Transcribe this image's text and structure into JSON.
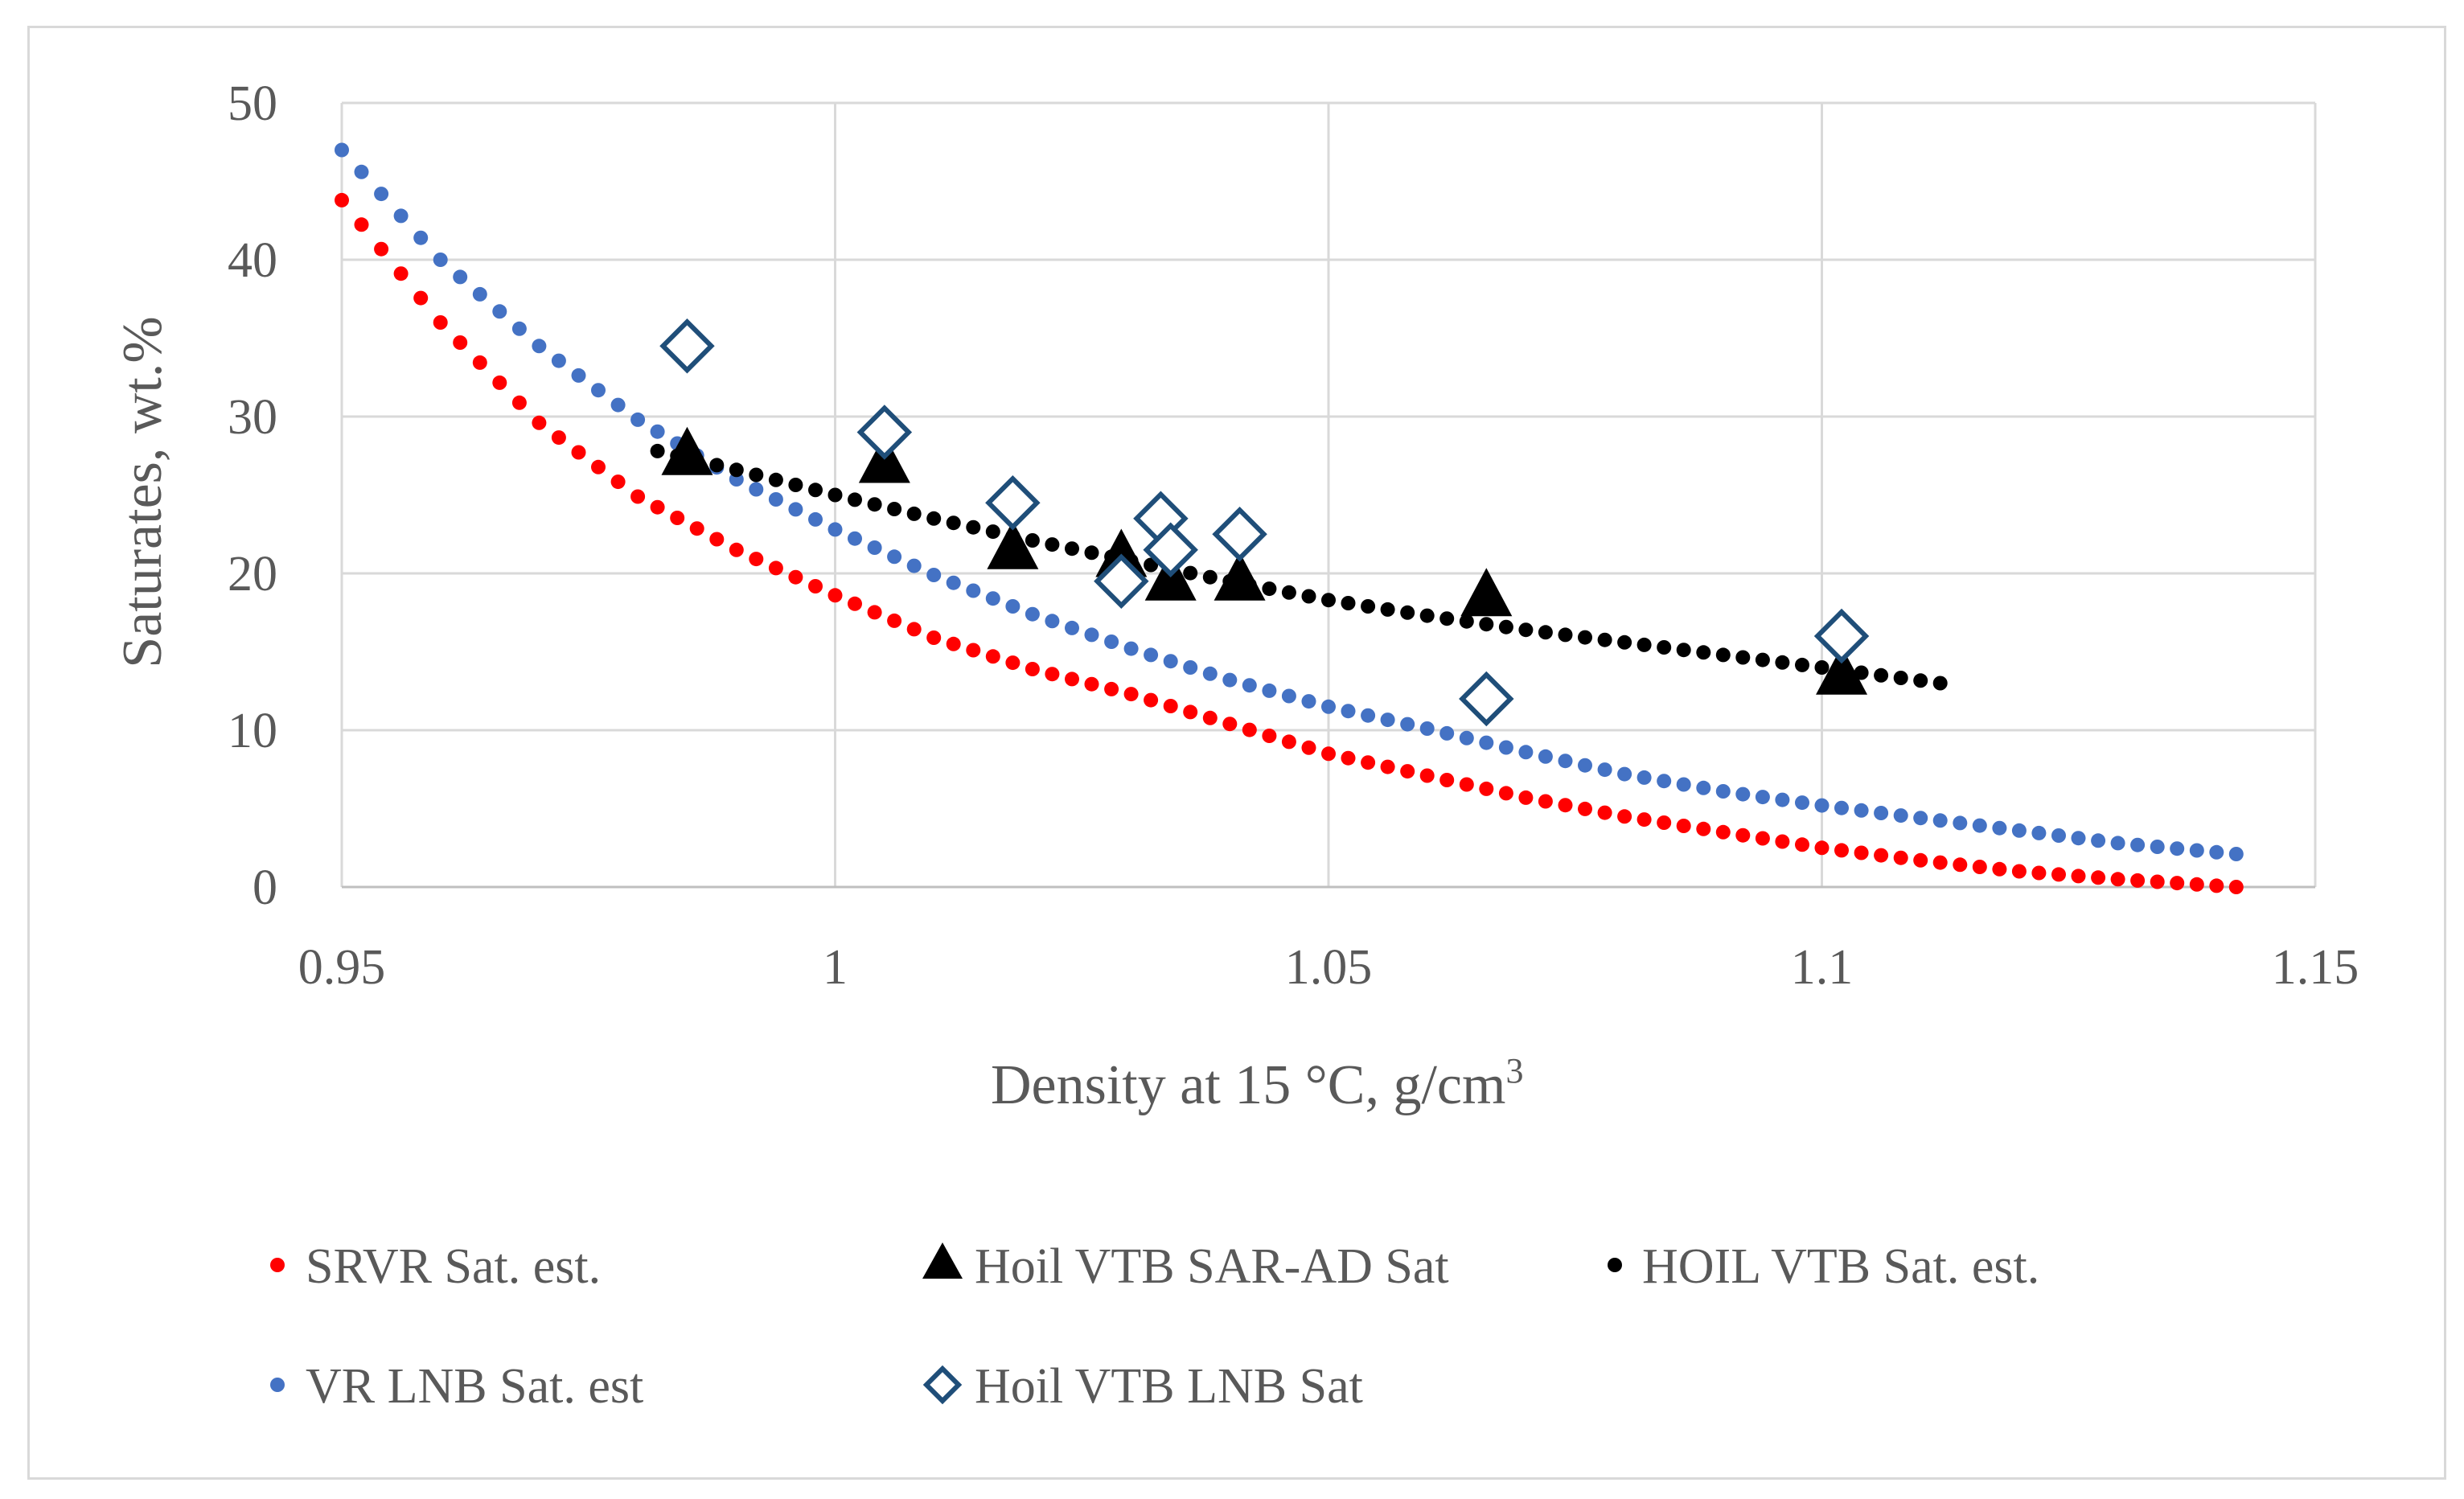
{
  "chart_data": {
    "type": "scatter",
    "xlabel": "Density at 15 °C, g/cm",
    "xlabel_sup": "3",
    "ylabel": "Saturates, wt.%",
    "xlim": [
      0.95,
      1.15
    ],
    "ylim": [
      0,
      50
    ],
    "xticks": [
      0.95,
      1.0,
      1.05,
      1.1,
      1.15
    ],
    "xtick_labels": [
      "0.95",
      "1",
      "1.05",
      "1.1",
      "1.15"
    ],
    "yticks": [
      0,
      10,
      20,
      30,
      40,
      50
    ],
    "ytick_labels": [
      "0",
      "10",
      "20",
      "30",
      "40",
      "50"
    ],
    "grid": true,
    "legend_position": "bottom",
    "series": [
      {
        "name": "SRVR Sat. est.",
        "kind": "dotted-curve",
        "color": "#ff0000",
        "x": [
          0.95,
          0.96,
          0.97,
          0.98,
          0.99,
          1.0,
          1.01,
          1.02,
          1.03,
          1.04,
          1.05,
          1.06,
          1.07,
          1.08,
          1.09,
          1.1,
          1.11,
          1.12,
          1.13,
          1.142
        ],
        "y": [
          43.8,
          36.0,
          29.6,
          24.9,
          21.5,
          18.6,
          15.9,
          13.9,
          12.3,
          10.4,
          8.5,
          7.1,
          5.7,
          4.5,
          3.5,
          2.5,
          1.7,
          1.0,
          0.5,
          0.0
        ]
      },
      {
        "name": "Hoil VTB SAR-AD Sat",
        "kind": "marker",
        "marker": "triangle",
        "color": "#000000",
        "x": [
          0.985,
          1.005,
          1.018,
          1.029,
          1.034,
          1.041,
          1.066,
          1.102
        ],
        "y": [
          27.5,
          27.0,
          21.5,
          21.0,
          19.5,
          19.5,
          18.5,
          13.5
        ]
      },
      {
        "name": "HOIL VTB Sat. est.",
        "kind": "dotted-curve",
        "color": "#000000",
        "x": [
          0.982,
          0.99,
          1.0,
          1.01,
          1.02,
          1.03,
          1.04,
          1.05,
          1.06,
          1.07,
          1.08,
          1.09,
          1.1,
          1.112
        ],
        "y": [
          27.8,
          26.6,
          25.0,
          23.5,
          22.1,
          20.8,
          19.5,
          18.3,
          17.3,
          16.4,
          15.6,
          14.8,
          14.0,
          13.0
        ]
      },
      {
        "name": "VR LNB Sat. est",
        "kind": "dotted-curve",
        "color": "#4472c4",
        "x": [
          0.95,
          0.96,
          0.97,
          0.98,
          0.99,
          1.0,
          1.01,
          1.02,
          1.03,
          1.04,
          1.05,
          1.06,
          1.07,
          1.08,
          1.09,
          1.1,
          1.11,
          1.12,
          1.13,
          1.142
        ],
        "y": [
          47.0,
          40.0,
          34.5,
          29.8,
          26.0,
          22.8,
          19.9,
          17.4,
          15.2,
          13.2,
          11.5,
          10.1,
          8.6,
          7.2,
          6.1,
          5.2,
          4.4,
          3.6,
          2.8,
          2.1
        ]
      },
      {
        "name": "Hoil VTB LNB Sat",
        "kind": "marker",
        "marker": "diamond-open",
        "color": "#1f4e79",
        "x": [
          0.985,
          1.005,
          1.018,
          1.029,
          1.033,
          1.034,
          1.041,
          1.066,
          1.102
        ],
        "y": [
          34.5,
          29.0,
          24.5,
          19.5,
          23.5,
          21.5,
          22.5,
          12.0,
          16.0
        ]
      }
    ]
  }
}
